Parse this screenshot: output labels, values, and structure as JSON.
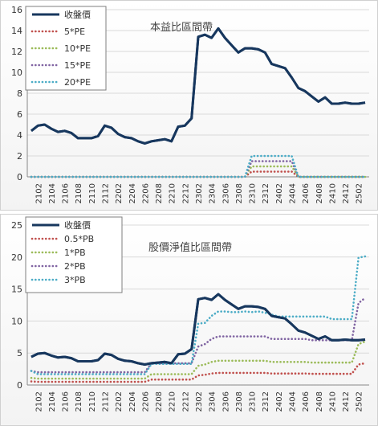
{
  "chart_data": [
    {
      "type": "line",
      "title": "本益比區間帶",
      "x_ticks": [
        "2102",
        "2104",
        "2106",
        "2108",
        "2110",
        "2112",
        "2202",
        "2204",
        "2206",
        "2208",
        "2210",
        "2212",
        "2302",
        "2304",
        "2306",
        "2308",
        "2310",
        "2312",
        "2402",
        "2404",
        "2406",
        "2408",
        "2410",
        "2412",
        "2502"
      ],
      "ylim": [
        0,
        16
      ],
      "yticks": [
        0,
        2,
        4,
        6,
        8,
        10,
        12,
        14,
        16
      ],
      "grid": true,
      "legend_position": "top-left",
      "series": [
        {
          "name": "收盤價",
          "color": "#17375e",
          "style": "solid",
          "values": [
            4.4,
            4.9,
            5.0,
            4.6,
            4.3,
            4.4,
            4.2,
            3.7,
            3.7,
            3.7,
            3.9,
            4.9,
            4.7,
            4.1,
            3.8,
            3.7,
            3.4,
            3.2,
            3.4,
            3.5,
            3.6,
            3.4,
            4.8,
            4.9,
            5.6,
            13.4,
            13.6,
            13.3,
            14.2,
            13.3,
            12.6,
            11.9,
            12.3,
            12.3,
            12.2,
            11.9,
            10.8,
            10.6,
            10.4,
            9.5,
            8.5,
            8.2,
            7.7,
            7.2,
            7.6,
            7.0,
            7.0,
            7.1,
            7.0,
            7.0,
            7.1
          ]
        },
        {
          "name": "5*PE",
          "color": "#c0504d",
          "style": "dotted",
          "values": [
            0,
            0,
            0,
            0,
            0,
            0,
            0,
            0,
            0,
            0,
            0,
            0,
            0,
            0,
            0,
            0,
            0,
            0,
            0,
            0,
            0,
            0,
            0,
            0,
            0,
            0,
            0,
            0,
            0,
            0,
            0,
            0,
            0,
            0.5,
            0.5,
            0.5,
            0.5,
            0.5,
            0.5,
            0.5,
            0,
            0,
            0,
            0,
            0,
            0,
            0,
            0,
            0,
            0,
            0
          ]
        },
        {
          "name": "10*PE",
          "color": "#9bbb59",
          "style": "dotted",
          "values": [
            0,
            0,
            0,
            0,
            0,
            0,
            0,
            0,
            0,
            0,
            0,
            0,
            0,
            0,
            0,
            0,
            0,
            0,
            0,
            0,
            0,
            0,
            0,
            0,
            0,
            0,
            0,
            0,
            0,
            0,
            0,
            0,
            0,
            1.0,
            1.0,
            1.0,
            1.0,
            1.0,
            1.0,
            1.0,
            0,
            0,
            0,
            0,
            0,
            0,
            0,
            0,
            0,
            0,
            0
          ]
        },
        {
          "name": "15*PE",
          "color": "#8064a2",
          "style": "dotted",
          "values": [
            0,
            0,
            0,
            0,
            0,
            0,
            0,
            0,
            0,
            0,
            0,
            0,
            0,
            0,
            0,
            0,
            0,
            0,
            0,
            0,
            0,
            0,
            0,
            0,
            0,
            0,
            0,
            0,
            0,
            0,
            0,
            0,
            0,
            1.5,
            1.5,
            1.5,
            1.5,
            1.5,
            1.5,
            1.5,
            0,
            0,
            0,
            0,
            0,
            0,
            0,
            0,
            0,
            0,
            0
          ]
        },
        {
          "name": "20*PE",
          "color": "#4bacc6",
          "style": "dotted",
          "values": [
            0,
            0,
            0,
            0,
            0,
            0,
            0,
            0,
            0,
            0,
            0,
            0,
            0,
            0,
            0,
            0,
            0,
            0,
            0,
            0,
            0,
            0,
            0,
            0,
            0,
            0,
            0,
            0,
            0,
            0,
            0,
            0,
            0,
            2.0,
            2.0,
            2.0,
            2.0,
            2.0,
            2.0,
            2.0,
            0,
            0,
            0,
            0,
            0,
            0,
            0,
            0,
            0,
            0,
            0
          ]
        }
      ]
    },
    {
      "type": "line",
      "title": "股價淨值比區間帶",
      "x_ticks": [
        "2102",
        "2104",
        "2106",
        "2108",
        "2110",
        "2112",
        "2202",
        "2204",
        "2206",
        "2208",
        "2210",
        "2212",
        "2302",
        "2304",
        "2306",
        "2308",
        "2310",
        "2312",
        "2402",
        "2404",
        "2406",
        "2408",
        "2410",
        "2412",
        "2502"
      ],
      "ylim": [
        0,
        25
      ],
      "yticks": [
        0,
        5,
        10,
        15,
        20,
        25
      ],
      "grid": true,
      "legend_position": "top-left",
      "series": [
        {
          "name": "收盤價",
          "color": "#17375e",
          "style": "solid",
          "values": [
            4.4,
            4.9,
            5.0,
            4.6,
            4.3,
            4.4,
            4.2,
            3.7,
            3.7,
            3.7,
            3.9,
            4.9,
            4.7,
            4.1,
            3.8,
            3.7,
            3.4,
            3.2,
            3.4,
            3.5,
            3.6,
            3.4,
            4.8,
            4.9,
            5.6,
            13.4,
            13.6,
            13.3,
            14.2,
            13.3,
            12.6,
            11.9,
            12.3,
            12.3,
            12.2,
            11.9,
            10.8,
            10.6,
            10.4,
            9.5,
            8.5,
            8.2,
            7.7,
            7.2,
            7.6,
            7.0,
            7.0,
            7.1,
            7.0,
            7.0,
            7.1
          ]
        },
        {
          "name": "0.5*PB",
          "color": "#c0504d",
          "style": "dotted",
          "values": [
            0.55,
            0.5,
            0.5,
            0.5,
            0.5,
            0.5,
            0.5,
            0.5,
            0.5,
            0.5,
            0.5,
            0.5,
            0.5,
            0.5,
            0.5,
            0.5,
            0.5,
            0.5,
            0.85,
            0.85,
            0.85,
            0.85,
            0.85,
            0.85,
            0.85,
            1.5,
            1.6,
            1.8,
            1.9,
            1.9,
            1.9,
            1.9,
            1.9,
            1.9,
            1.9,
            1.9,
            1.8,
            1.8,
            1.8,
            1.8,
            1.8,
            1.8,
            1.75,
            1.75,
            1.75,
            1.75,
            1.75,
            1.75,
            1.75,
            3.2,
            3.4
          ]
        },
        {
          "name": "1*PB",
          "color": "#9bbb59",
          "style": "dotted",
          "values": [
            1.1,
            1.0,
            1.0,
            1.0,
            1.0,
            1.0,
            1.0,
            1.0,
            1.0,
            1.0,
            1.0,
            1.0,
            1.0,
            1.0,
            1.0,
            1.0,
            1.0,
            1.0,
            1.7,
            1.7,
            1.7,
            1.7,
            1.7,
            1.7,
            1.7,
            3.0,
            3.2,
            3.6,
            3.8,
            3.8,
            3.8,
            3.8,
            3.8,
            3.8,
            3.8,
            3.8,
            3.6,
            3.6,
            3.6,
            3.6,
            3.6,
            3.6,
            3.5,
            3.5,
            3.5,
            3.5,
            3.5,
            3.5,
            3.5,
            6.4,
            6.8
          ]
        },
        {
          "name": "2*PB",
          "color": "#8064a2",
          "style": "dotted",
          "values": [
            2.2,
            2.0,
            2.0,
            2.0,
            2.0,
            2.0,
            2.0,
            2.0,
            2.0,
            2.0,
            2.0,
            2.0,
            2.0,
            2.0,
            2.0,
            2.0,
            2.0,
            2.0,
            3.4,
            3.4,
            3.4,
            3.4,
            3.4,
            3.4,
            3.4,
            6.0,
            6.4,
            7.2,
            7.6,
            7.6,
            7.6,
            7.6,
            7.6,
            7.6,
            7.6,
            7.6,
            7.2,
            7.2,
            7.2,
            7.2,
            7.2,
            7.2,
            7.0,
            7.0,
            7.0,
            7.0,
            7.0,
            7.0,
            7.0,
            12.8,
            13.6
          ]
        },
        {
          "name": "3*PB",
          "color": "#4bacc6",
          "style": "dotted",
          "values": [
            2.2,
            1.7,
            1.7,
            1.7,
            1.7,
            1.7,
            1.7,
            1.7,
            1.7,
            1.7,
            1.7,
            1.7,
            1.7,
            1.7,
            1.7,
            1.7,
            1.7,
            1.7,
            3.3,
            3.3,
            3.3,
            3.3,
            3.3,
            3.3,
            3.3,
            9.6,
            9.7,
            10.8,
            11.5,
            11.5,
            11.4,
            11.4,
            11.5,
            11.4,
            11.5,
            11.3,
            11.0,
            10.7,
            10.7,
            10.7,
            10.7,
            10.7,
            10.7,
            10.7,
            10.7,
            10.3,
            10.3,
            10.3,
            10.3,
            19.9,
            20.1
          ]
        }
      ]
    }
  ]
}
